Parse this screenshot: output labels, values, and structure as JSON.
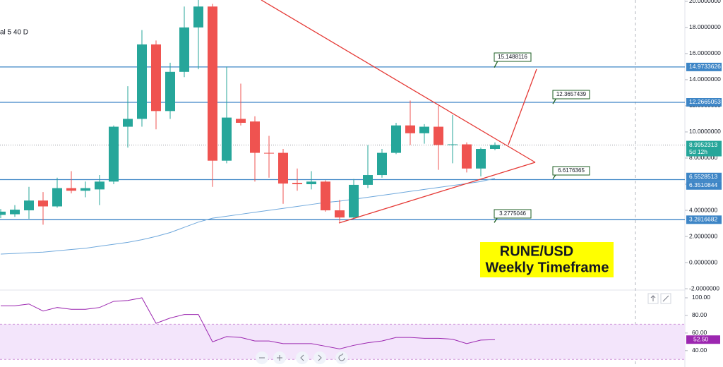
{
  "chart_data": {
    "type": "candlestick",
    "indicator_label": "al 5 40 D",
    "title_lines": [
      "RUNE/USD",
      "Weekly Timeframe"
    ],
    "up_color": "#26a69a",
    "down_color": "#ef5350",
    "ylim": [
      -2.05,
      20.1
    ],
    "yticks": [
      {
        "value": 20,
        "label": "20.0000000"
      },
      {
        "value": 18,
        "label": "18.0000000"
      },
      {
        "value": 16,
        "label": "16.0000000"
      },
      {
        "value": 14,
        "label": "14.0000000"
      },
      {
        "value": 12,
        "label": "12.0000000"
      },
      {
        "value": 10,
        "label": "10.0000000"
      },
      {
        "value": 8,
        "label": "8.0000000"
      },
      {
        "value": 6,
        "label": "6.0000000"
      },
      {
        "value": 4,
        "label": "4.0000000"
      },
      {
        "value": 2,
        "label": "2.0000000"
      },
      {
        "value": 0,
        "label": "0.0000000"
      },
      {
        "value": -2,
        "label": "-2.0000000"
      }
    ],
    "candles": {
      "open": [
        3.65,
        3.7,
        4.0,
        4.75,
        4.3,
        5.7,
        5.5,
        5.6,
        6.2,
        10.4,
        11.0,
        16.7,
        11.6,
        14.6,
        18.0,
        19.6,
        7.8,
        11.0,
        10.8,
        8.4,
        8.4,
        6.1,
        6.0,
        6.2,
        4.0,
        3.45,
        5.95,
        6.7,
        8.4,
        10.5,
        9.9,
        10.4,
        9.0,
        9.05,
        7.2,
        8.7
      ],
      "close": [
        3.9,
        4.05,
        4.75,
        4.3,
        5.7,
        5.5,
        5.7,
        6.2,
        10.4,
        11.0,
        16.7,
        11.6,
        14.6,
        18.0,
        19.6,
        7.8,
        11.1,
        10.7,
        8.4,
        8.35,
        6.05,
        6.0,
        6.2,
        4.0,
        3.45,
        5.95,
        6.7,
        8.4,
        10.5,
        9.9,
        10.4,
        9.0,
        9.05,
        7.2,
        8.7,
        9.0
      ],
      "high": [
        4.1,
        4.4,
        5.8,
        5.4,
        6.5,
        7.0,
        6.2,
        6.7,
        10.5,
        13.5,
        17.8,
        17.0,
        15.3,
        19.6,
        20.5,
        19.8,
        15.0,
        13.7,
        11.2,
        9.7,
        8.7,
        7.2,
        7.0,
        6.3,
        4.8,
        6.4,
        9.0,
        8.7,
        10.7,
        12.4,
        10.6,
        12.0,
        11.3,
        9.2,
        8.8,
        9.2
      ],
      "low": [
        3.4,
        3.5,
        3.35,
        2.9,
        4.2,
        5.3,
        5.0,
        4.4,
        6.0,
        8.8,
        10.4,
        10.2,
        11.0,
        14.2,
        14.8,
        5.8,
        7.6,
        10.5,
        6.2,
        6.5,
        4.5,
        5.5,
        5.6,
        3.9,
        3.1,
        3.4,
        5.7,
        6.5,
        8.3,
        9.0,
        9.1,
        7.1,
        7.6,
        6.9,
        6.6,
        8.6
      ]
    },
    "moving_average": {
      "color": "#6fa8dc",
      "values": [
        0.65,
        0.7,
        0.75,
        0.8,
        0.9,
        1.0,
        1.1,
        1.25,
        1.4,
        1.55,
        1.75,
        2.0,
        2.3,
        2.7,
        3.1,
        3.4,
        3.55,
        3.7,
        3.85,
        4.0,
        4.15,
        4.3,
        4.45,
        4.6,
        4.7,
        4.85,
        5.0,
        5.15,
        5.3,
        5.45,
        5.6,
        5.75,
        5.9,
        6.05,
        6.2,
        6.45
      ]
    },
    "levels": [
      14.9733626,
      12.2665053,
      6.3510844,
      3.2816682
    ],
    "level_color": "#3d85c6",
    "price_tags": [
      {
        "value": 14.9733626,
        "color": "#3d85c6"
      },
      {
        "value": 12.2665053,
        "color": "#3d85c6"
      },
      {
        "value": 8.9952313,
        "color": "#26a69a",
        "note": "5d 12h"
      },
      {
        "value": 6.5528513,
        "color": "#3d85c6"
      },
      {
        "value": 6.3510844,
        "color": "#3d85c6"
      },
      {
        "value": 3.2816682,
        "color": "#3d85c6"
      }
    ],
    "current_price": 8.9952313,
    "callouts": [
      15.1488116,
      12.3657439,
      6.6176365,
      3.2775046
    ],
    "rsi": {
      "color": "#9c27b0",
      "ylim": [
        23,
        108
      ],
      "yticks": [
        {
          "value": 100,
          "label": "100.00"
        },
        {
          "value": 80,
          "label": "80.00"
        },
        {
          "value": 60,
          "label": "60.00"
        },
        {
          "value": 40,
          "label": "40.00"
        }
      ],
      "band": [
        30,
        70
      ],
      "values": [
        91,
        91,
        93,
        85,
        89,
        87,
        87,
        89,
        96,
        97,
        100,
        71,
        77,
        81,
        81,
        50,
        56,
        55,
        51,
        51,
        48,
        48,
        48,
        45,
        42,
        46,
        49,
        51,
        55,
        55,
        54,
        54,
        53,
        48,
        52,
        52.5
      ],
      "last": 52.5,
      "last_label": "52.50"
    }
  }
}
